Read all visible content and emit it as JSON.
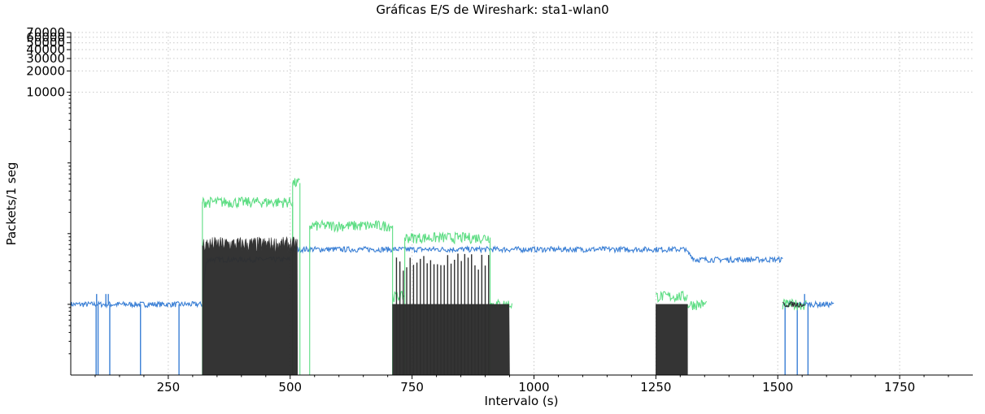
{
  "chart_data": {
    "type": "line",
    "title": "Gráficas E/S de Wireshark: sta1-wlan0",
    "xlabel": "Intervalo (s)",
    "ylabel": "Packets/1 seg",
    "xlim": [
      50,
      1900
    ],
    "ylim": [
      1,
      70000
    ],
    "yscale": "log",
    "grid": true,
    "x_ticks": [
      250,
      500,
      750,
      1000,
      1250,
      1500,
      1750
    ],
    "x_tick_labels": [
      "250",
      "500",
      "750",
      "1000",
      "1250",
      "1500",
      "1750"
    ],
    "y_ticks": [
      10000,
      20000,
      30000,
      40000,
      50000,
      60000,
      70000
    ],
    "y_tick_labels": [
      "10000",
      "20000",
      "30000",
      "40000",
      "50000",
      "60000",
      "70000"
    ],
    "series": [
      {
        "color": "#3a7fd5",
        "segments": [
          {
            "x_start": 50,
            "x_end": 320,
            "value": 10,
            "dropouts_x": [
              102,
              106,
              130,
              193,
              272
            ],
            "spikes_x": [
              103,
              122,
              127
            ]
          },
          {
            "x_start": 320,
            "x_end": 330,
            "value_start": 10,
            "value_end": 45
          },
          {
            "x_start": 330,
            "x_end": 500,
            "value": 43
          },
          {
            "x_start": 500,
            "x_end": 1310,
            "value": 60
          },
          {
            "x_start": 1310,
            "x_end": 1330,
            "value_start": 58,
            "value_end": 43
          },
          {
            "x_start": 1330,
            "x_end": 1510,
            "value": 43
          },
          {
            "x_start": 1510,
            "x_end": 1615,
            "value": 10,
            "dropouts_x": [
              1515,
              1540,
              1562
            ],
            "spikes_x": [
              1555
            ]
          }
        ]
      },
      {
        "color": "#5ddd83",
        "segments": [
          {
            "x_start": 320,
            "x_end": 505,
            "value": 280
          },
          {
            "x_start": 505,
            "x_end": 520,
            "value": 520
          },
          {
            "x_start": 540,
            "x_end": 710,
            "value": 130
          },
          {
            "x_start": 710,
            "x_end": 735,
            "value": 13
          },
          {
            "x_start": 735,
            "x_end": 910,
            "value": 88
          },
          {
            "x_start": 910,
            "x_end": 955,
            "value": 10
          },
          {
            "x_start": 1250,
            "x_end": 1315,
            "value": 13
          },
          {
            "x_start": 1315,
            "x_end": 1355,
            "value": 10
          },
          {
            "x_start": 1510,
            "x_end": 1560,
            "value": 10
          }
        ]
      },
      {
        "color": "#2e2e2e",
        "segments": [
          {
            "x_start": 320,
            "x_end": 515,
            "value": 75,
            "fill": true
          },
          {
            "x_start": 710,
            "x_end": 950,
            "value": 10,
            "fill": true,
            "spikes_to": 48
          },
          {
            "x_start": 1250,
            "x_end": 1315,
            "value": 10,
            "fill": true
          },
          {
            "x_start": 1510,
            "x_end": 1555,
            "value": 10,
            "fill": false
          }
        ]
      }
    ]
  }
}
